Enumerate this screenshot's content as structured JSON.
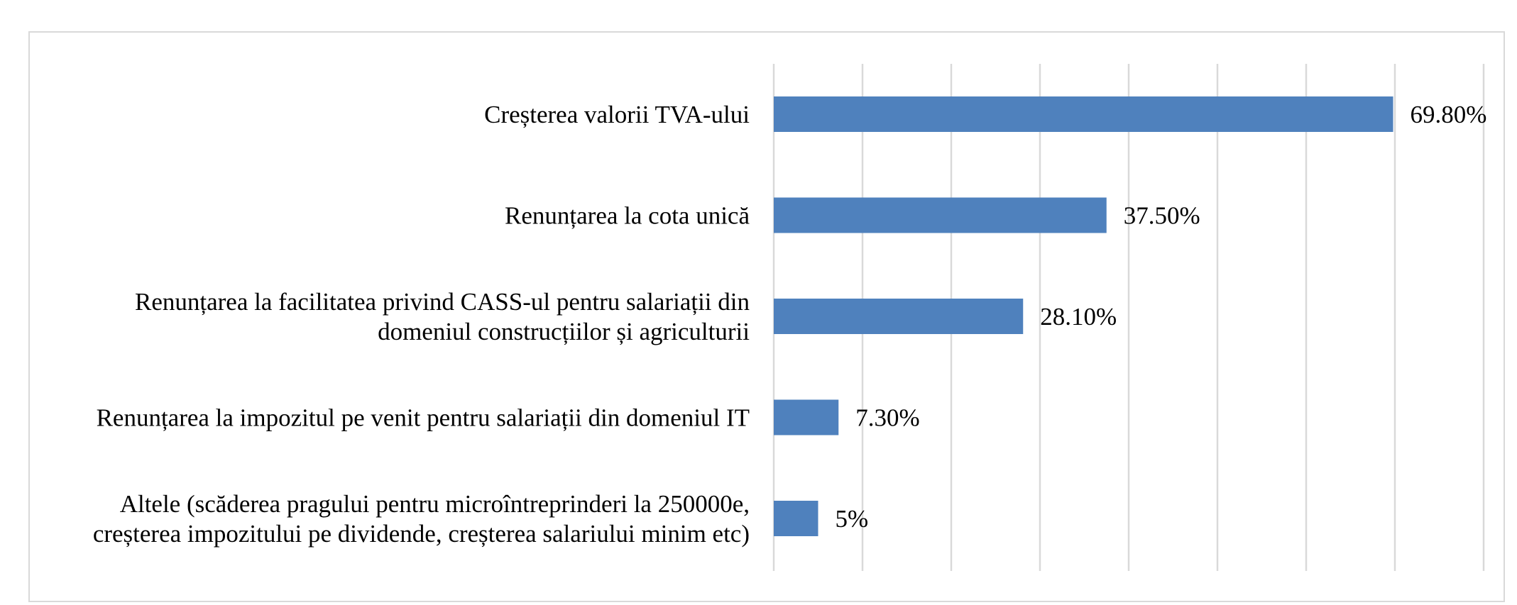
{
  "chart_data": {
    "type": "bar",
    "orientation": "horizontal",
    "categories": [
      [
        "Creșterea valorii TVA-ului"
      ],
      [
        "Renunțarea la cota unică"
      ],
      [
        "Renunțarea la facilitatea privind CASS-ul pentru salariații din",
        "domeniul construcțiilor și agriculturii"
      ],
      [
        "Renunțarea la impozitul pe venit pentru salariații din domeniul IT"
      ],
      [
        "Altele (scăderea pragului pentru microîntreprinderi la 250000e,",
        "creșterea impozitului pe dividende, creșterea salariului minim etc)"
      ]
    ],
    "values": [
      69.8,
      37.5,
      28.1,
      7.3,
      5
    ],
    "data_labels": [
      "69.80%",
      "37.50%",
      "28.10%",
      "7.30%",
      "5%"
    ],
    "xlim": [
      0,
      80
    ],
    "grid_step": 10,
    "grid": true,
    "legend": false,
    "title": "",
    "xlabel": "",
    "ylabel": "",
    "colors": {
      "bar": "#4f81bd",
      "grid": "#d9d9d9",
      "frame": "#d9d9d9",
      "text": "#000000"
    }
  }
}
